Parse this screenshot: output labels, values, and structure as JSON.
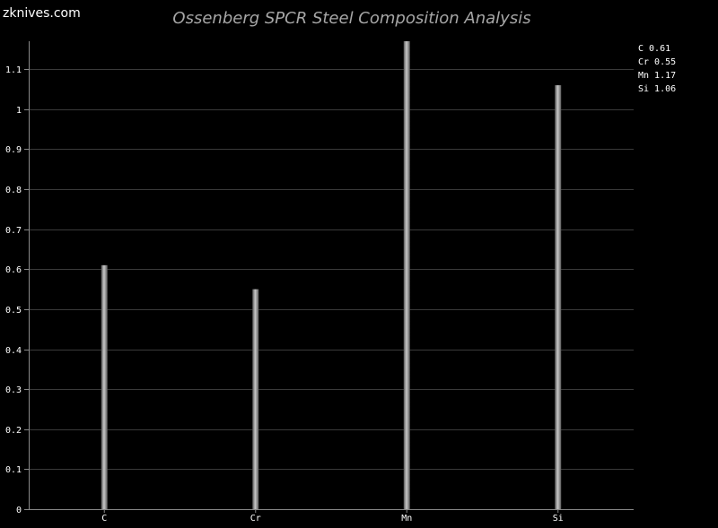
{
  "site": {
    "logo_text": "zknives.com"
  },
  "chart_data": {
    "type": "bar",
    "title": "Ossenberg SPCR Steel Composition Analysis",
    "xlabel": "",
    "ylabel": "",
    "categories": [
      "C",
      "Cr",
      "Mn",
      "Si"
    ],
    "values": [
      0.61,
      0.55,
      1.17,
      1.06
    ],
    "value_labels": [
      "0.61",
      "0.55",
      "1.17",
      "1.06"
    ],
    "ylim": [
      0,
      1.17
    ],
    "yticks": [
      0,
      0.1,
      0.2,
      0.3,
      0.4,
      0.5,
      0.6,
      0.7,
      0.8,
      0.9,
      1,
      1.1
    ],
    "ytick_labels": [
      "0",
      "0.1",
      "0.2",
      "0.3",
      "0.4",
      "0.5",
      "0.6",
      "0.7",
      "0.8",
      "0.9",
      "1",
      "1.1"
    ],
    "grid": true,
    "legend": "top-right",
    "colors": {
      "background": "#000000",
      "bar": "#9a9a9a",
      "grid": "#3a3a3a",
      "axis": "#888888",
      "text": "#ffffff",
      "title": "#a6a6a6"
    }
  }
}
